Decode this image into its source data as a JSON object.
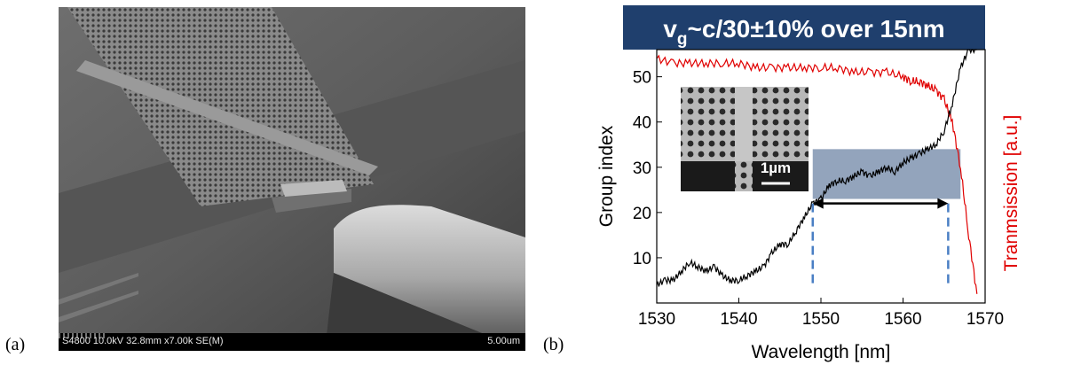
{
  "panel_labels": {
    "a": "(a)",
    "b": "(b)"
  },
  "sem_image": {
    "info_text": "S4800 10.0kV 32.8mm x7.00k SE(M)",
    "scale_text": "5.00um"
  },
  "chart_data": {
    "type": "line",
    "title_banner": "v_g~c/30±10% over 15nm",
    "title_parts": {
      "v": "v",
      "sub": "g",
      "rest": "~c/30±10% over 15nm"
    },
    "xlabel": "Wavelength [nm]",
    "ylabel_left": "Group index",
    "ylabel_right": "Tranmsission [a.u.]",
    "xlim": [
      1530,
      1570
    ],
    "ylim": [
      0,
      56
    ],
    "x_ticks": [
      1530,
      1540,
      1550,
      1560,
      1570
    ],
    "y_ticks": [
      10,
      20,
      30,
      40,
      50
    ],
    "inset_scale_label": "1µm",
    "series": [
      {
        "color": "#000000",
        "x": [
          1530,
          1531,
          1532,
          1533,
          1534,
          1535,
          1536,
          1537,
          1538,
          1539,
          1540,
          1541,
          1542,
          1543,
          1544,
          1545,
          1546,
          1547,
          1548,
          1549,
          1550,
          1551,
          1552,
          1553,
          1554,
          1555,
          1556,
          1557,
          1558,
          1559,
          1560,
          1561,
          1562,
          1563,
          1564,
          1565,
          1566,
          1567,
          1568,
          1569
        ],
        "values": [
          4,
          5,
          5,
          7,
          9,
          8,
          7,
          8,
          6,
          5,
          5,
          6,
          7,
          8,
          11,
          13,
          13,
          16,
          19,
          22,
          23,
          26,
          27,
          27,
          28,
          29,
          28,
          29,
          30,
          29,
          31,
          32,
          33,
          34,
          35,
          38,
          44,
          52,
          56,
          56
        ]
      },
      {
        "color": "#e00000",
        "x": [
          1530,
          1532,
          1534,
          1536,
          1538,
          1540,
          1542,
          1544,
          1546,
          1548,
          1550,
          1552,
          1554,
          1556,
          1558,
          1560,
          1561,
          1562,
          1563,
          1564,
          1565,
          1566,
          1567,
          1568,
          1569
        ],
        "values": [
          54,
          53,
          53,
          53,
          53,
          53,
          52,
          52,
          52,
          52,
          52,
          52,
          51,
          51,
          51,
          50,
          49,
          49,
          48,
          47,
          45,
          40,
          30,
          15,
          2
        ]
      }
    ],
    "shaded_band": {
      "x": [
        1549,
        1567
      ],
      "y": [
        23,
        34
      ]
    },
    "arrow": {
      "x": [
        1549,
        1565.5
      ],
      "y": 22
    },
    "dashed_markers": [
      1549,
      1565.5
    ]
  }
}
